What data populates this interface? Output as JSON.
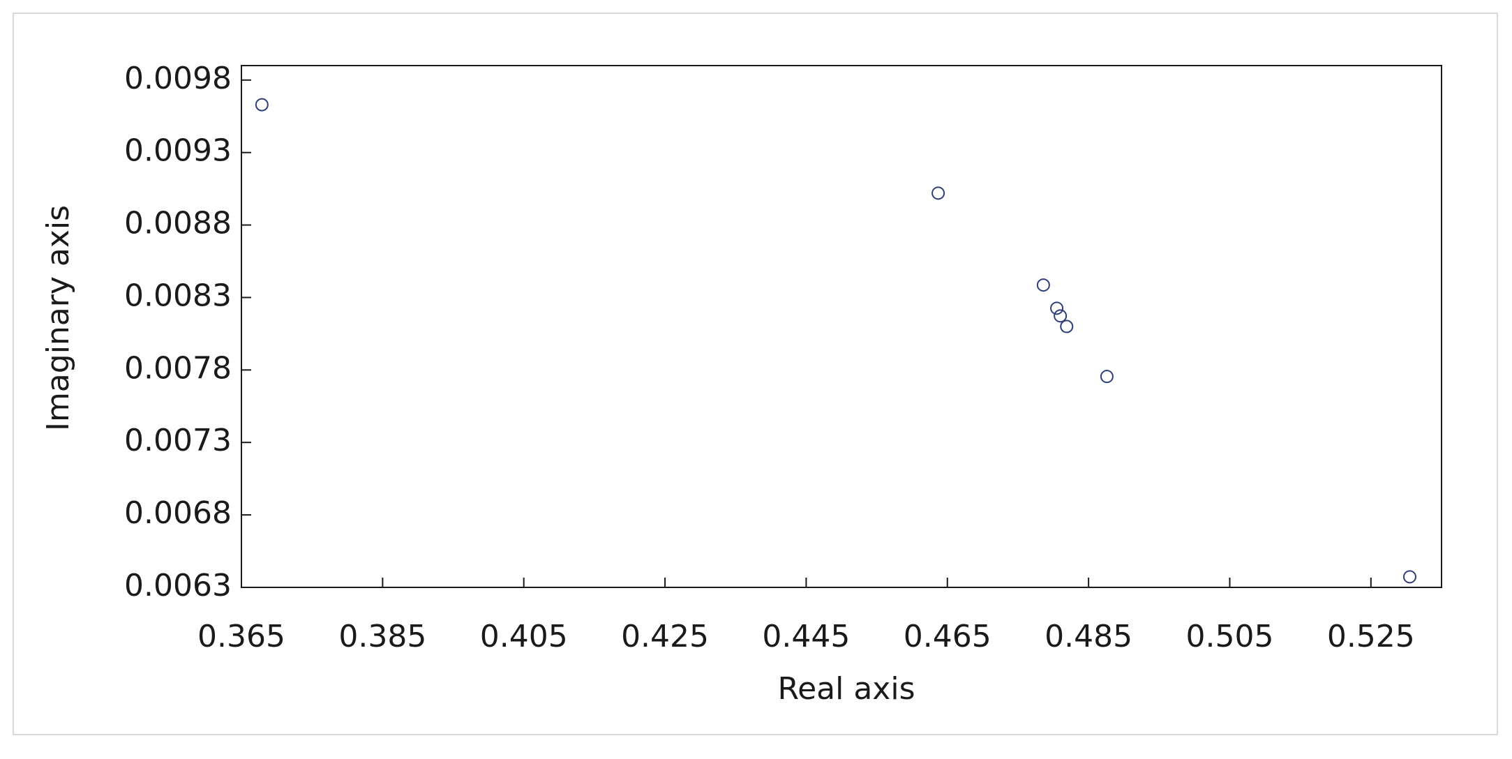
{
  "chart_data": {
    "type": "scatter",
    "x_label": "Real axis",
    "y_label": "Imaginary axis",
    "color": "#2f3e7a",
    "x": [
      0.3679,
      0.4637,
      0.4786,
      0.4805,
      0.481,
      0.4819,
      0.4876,
      0.5305
    ],
    "values": [
      0.00963,
      0.00902,
      0.008386,
      0.008226,
      0.008173,
      0.0081,
      0.007755,
      0.006373
    ],
    "xlim": [
      0.365,
      0.535
    ],
    "xticks": [
      0.365,
      0.385,
      0.405,
      0.425,
      0.445,
      0.465,
      0.485,
      0.505,
      0.525
    ],
    "ylim": [
      0.0063,
      0.0099
    ],
    "yticks": [
      0.0063,
      0.0068,
      0.0073,
      0.0078,
      0.0083,
      0.0088,
      0.0093,
      0.0098
    ],
    "grid": false
  }
}
